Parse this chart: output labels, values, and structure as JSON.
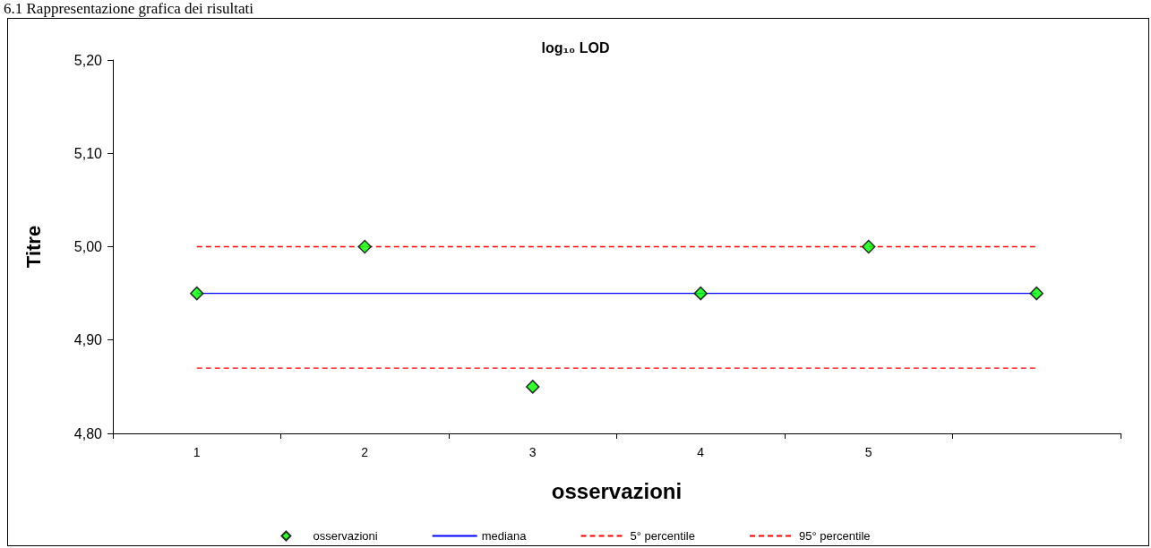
{
  "chart_data": {
    "type": "line",
    "title": "log₁₀ LOD",
    "xlabel": "osservazioni",
    "ylabel": "Titre",
    "annotations": [
      "6.1 Rappresentazione grafica dei risultati"
    ],
    "categories": [
      "1",
      "2",
      "3",
      "4",
      "5",
      null
    ],
    "series": [
      {
        "name": "osservazioni",
        "type": "scatter",
        "marker": "diamond",
        "color": "#00ff00",
        "values": [
          4.95,
          5.0,
          4.85,
          4.95,
          5.0,
          4.95
        ]
      },
      {
        "name": "mediana",
        "line_style": "solid",
        "color": "#0000ff",
        "values": [
          4.95,
          4.95,
          4.95,
          4.95,
          4.95,
          4.95
        ]
      },
      {
        "name": "5° percentile",
        "line_style": "dashed",
        "color": "#ff0000",
        "values": [
          4.87,
          4.87,
          4.87,
          4.87,
          4.87,
          4.87
        ]
      },
      {
        "name": "95° percentile",
        "line_style": "dashed",
        "color": "#ff0000",
        "values": [
          5.0,
          5.0,
          5.0,
          5.0,
          5.0,
          5.0
        ]
      }
    ],
    "ylim": [
      4.8,
      5.2
    ],
    "yticks": [
      {
        "value": 4.8,
        "label": "4,80"
      },
      {
        "value": 4.9,
        "label": "4,90"
      },
      {
        "value": 5.0,
        "label": "5,00"
      },
      {
        "value": 5.1,
        "label": "5,10"
      },
      {
        "value": 5.2,
        "label": "5,20"
      }
    ],
    "grid": false,
    "legend": "bottom"
  }
}
